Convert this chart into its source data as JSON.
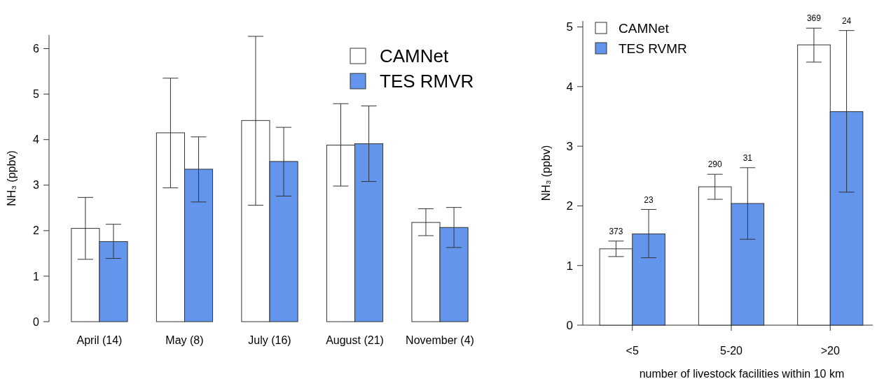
{
  "chart_data": [
    {
      "type": "bar",
      "ylabel": "NH₃ (ppbv)",
      "categories": [
        "April (14)",
        "May (8)",
        "July (16)",
        "August (21)",
        "November (4)"
      ],
      "ylim": [
        0,
        6.3
      ],
      "yticks": [
        0,
        1,
        2,
        3,
        4,
        5,
        6
      ],
      "legend": "top right",
      "series": [
        {
          "name": "CAMNet",
          "color": "#ffffff",
          "values": [
            2.05,
            4.15,
            4.42,
            3.88,
            2.18
          ],
          "errors": [
            [
              1.37,
              2.73
            ],
            [
              2.94,
              5.35
            ],
            [
              2.56,
              6.27
            ],
            [
              2.98,
              4.79
            ],
            [
              1.89,
              2.48
            ]
          ]
        },
        {
          "name": "TES RMVR",
          "color": "#6495ed",
          "values": [
            1.76,
            3.35,
            3.52,
            3.91,
            2.07
          ],
          "errors": [
            [
              1.39,
              2.14
            ],
            [
              2.63,
              4.06
            ],
            [
              2.76,
              4.27
            ],
            [
              3.08,
              4.74
            ],
            [
              1.63,
              2.51
            ]
          ]
        }
      ]
    },
    {
      "type": "bar",
      "ylabel": "NH₃ (ppbv)",
      "xlabel": "number of livestock facilities within 10 km",
      "categories": [
        "<5",
        "5-20",
        ">20"
      ],
      "ylim": [
        0,
        5.1
      ],
      "yticks": [
        0,
        1,
        2,
        3,
        4,
        5
      ],
      "legend": "top left",
      "annotations": [
        "373",
        "23",
        "290",
        "31",
        "369",
        "24"
      ],
      "series": [
        {
          "name": "CAMNet",
          "color": "#ffffff",
          "values": [
            1.28,
            2.32,
            4.7
          ],
          "errors": [
            [
              1.15,
              1.41
            ],
            [
              2.11,
              2.53
            ],
            [
              4.41,
              4.98
            ]
          ]
        },
        {
          "name": "TES RVMR",
          "color": "#6495ed",
          "values": [
            1.53,
            2.04,
            3.58
          ],
          "errors": [
            [
              1.13,
              1.94
            ],
            [
              1.44,
              2.64
            ],
            [
              2.23,
              4.94
            ]
          ]
        }
      ]
    }
  ]
}
